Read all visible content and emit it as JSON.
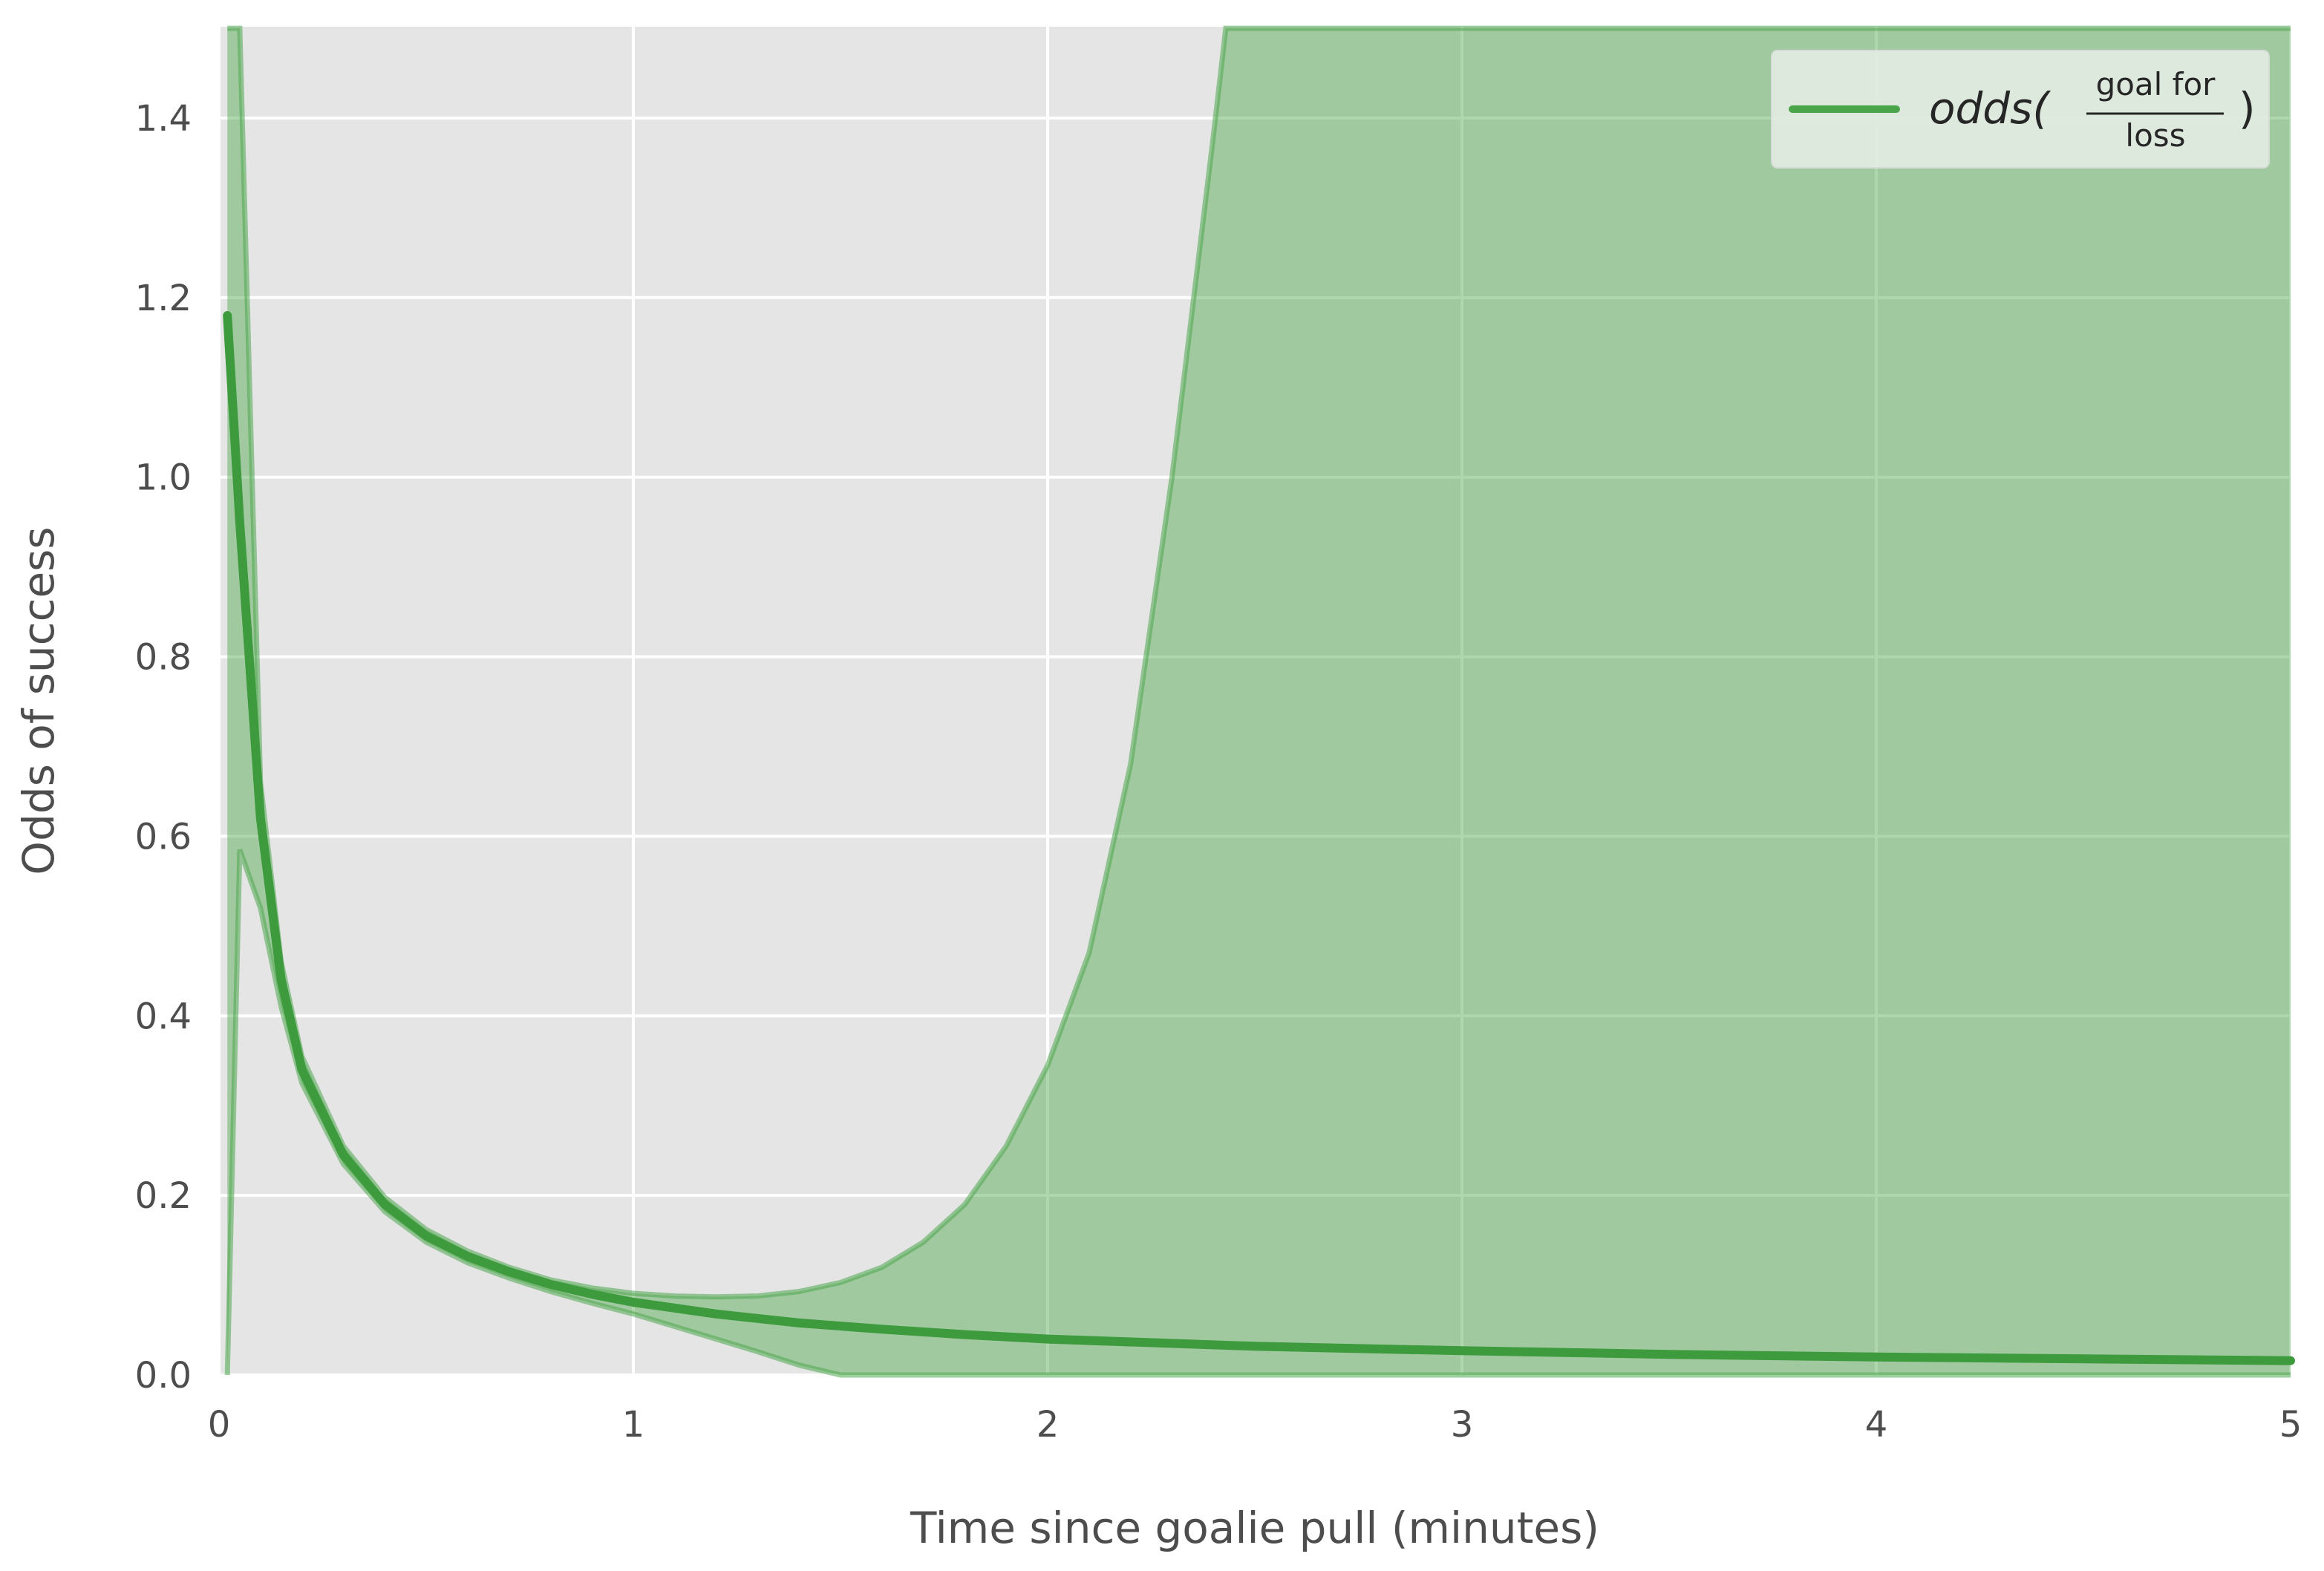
{
  "chart_data": {
    "type": "line",
    "title": "",
    "xlabel": "Time since goalie pull (minutes)",
    "ylabel": "Odds of success",
    "xlim": [
      0,
      5
    ],
    "ylim": [
      0,
      1.5
    ],
    "x_ticks": [
      "0",
      "1",
      "2",
      "3",
      "4",
      "5"
    ],
    "y_ticks": [
      "0.0",
      "0.2",
      "0.4",
      "0.6",
      "0.8",
      "1.0",
      "1.2",
      "1.4"
    ],
    "grid": true,
    "legend_position": "top-right",
    "legend": {
      "prefix": "odds(",
      "numerator": "goal for",
      "denominator": "loss",
      "suffix": ")"
    },
    "colors": {
      "line": "#3d9a3d",
      "band": "#4ca64c",
      "background": "#e5e5e5",
      "grid": "#ffffff"
    },
    "series": [
      {
        "values_x": [
          0.02,
          0.05,
          0.1,
          0.15,
          0.2,
          0.3,
          0.4,
          0.5,
          0.6,
          0.7,
          0.8,
          0.9,
          1.0,
          1.2,
          1.4,
          1.6,
          1.8,
          2.0,
          2.5,
          3.0,
          3.5,
          4.0,
          4.5,
          5.0
        ],
        "values_y": [
          1.18,
          0.95,
          0.62,
          0.44,
          0.34,
          0.245,
          0.19,
          0.155,
          0.132,
          0.115,
          0.101,
          0.09,
          0.081,
          0.068,
          0.058,
          0.051,
          0.045,
          0.04,
          0.032,
          0.027,
          0.023,
          0.02,
          0.018,
          0.016
        ]
      }
    ],
    "band": {
      "x": [
        0.02,
        0.05,
        0.1,
        0.15,
        0.2,
        0.3,
        0.4,
        0.5,
        0.6,
        0.7,
        0.8,
        0.9,
        1.0,
        1.1,
        1.2,
        1.3,
        1.4,
        1.5,
        1.6,
        1.7,
        1.8,
        1.9,
        2.0,
        2.1,
        2.2,
        2.3,
        2.4,
        2.43,
        5.0
      ],
      "upper": [
        1.5,
        1.5,
        0.66,
        0.46,
        0.355,
        0.255,
        0.198,
        0.162,
        0.138,
        0.12,
        0.106,
        0.097,
        0.091,
        0.088,
        0.087,
        0.088,
        0.093,
        0.103,
        0.12,
        0.148,
        0.19,
        0.255,
        0.345,
        0.47,
        0.68,
        1.0,
        1.38,
        1.5,
        1.5
      ],
      "lower": [
        0.0,
        0.585,
        0.52,
        0.41,
        0.325,
        0.235,
        0.182,
        0.148,
        0.125,
        0.108,
        0.093,
        0.08,
        0.068,
        0.054,
        0.04,
        0.026,
        0.011,
        0.0,
        0.0,
        0.0,
        0.0,
        0.0,
        0.0,
        0.0,
        0.0,
        0.0,
        0.0,
        0.0,
        0.0
      ]
    }
  }
}
